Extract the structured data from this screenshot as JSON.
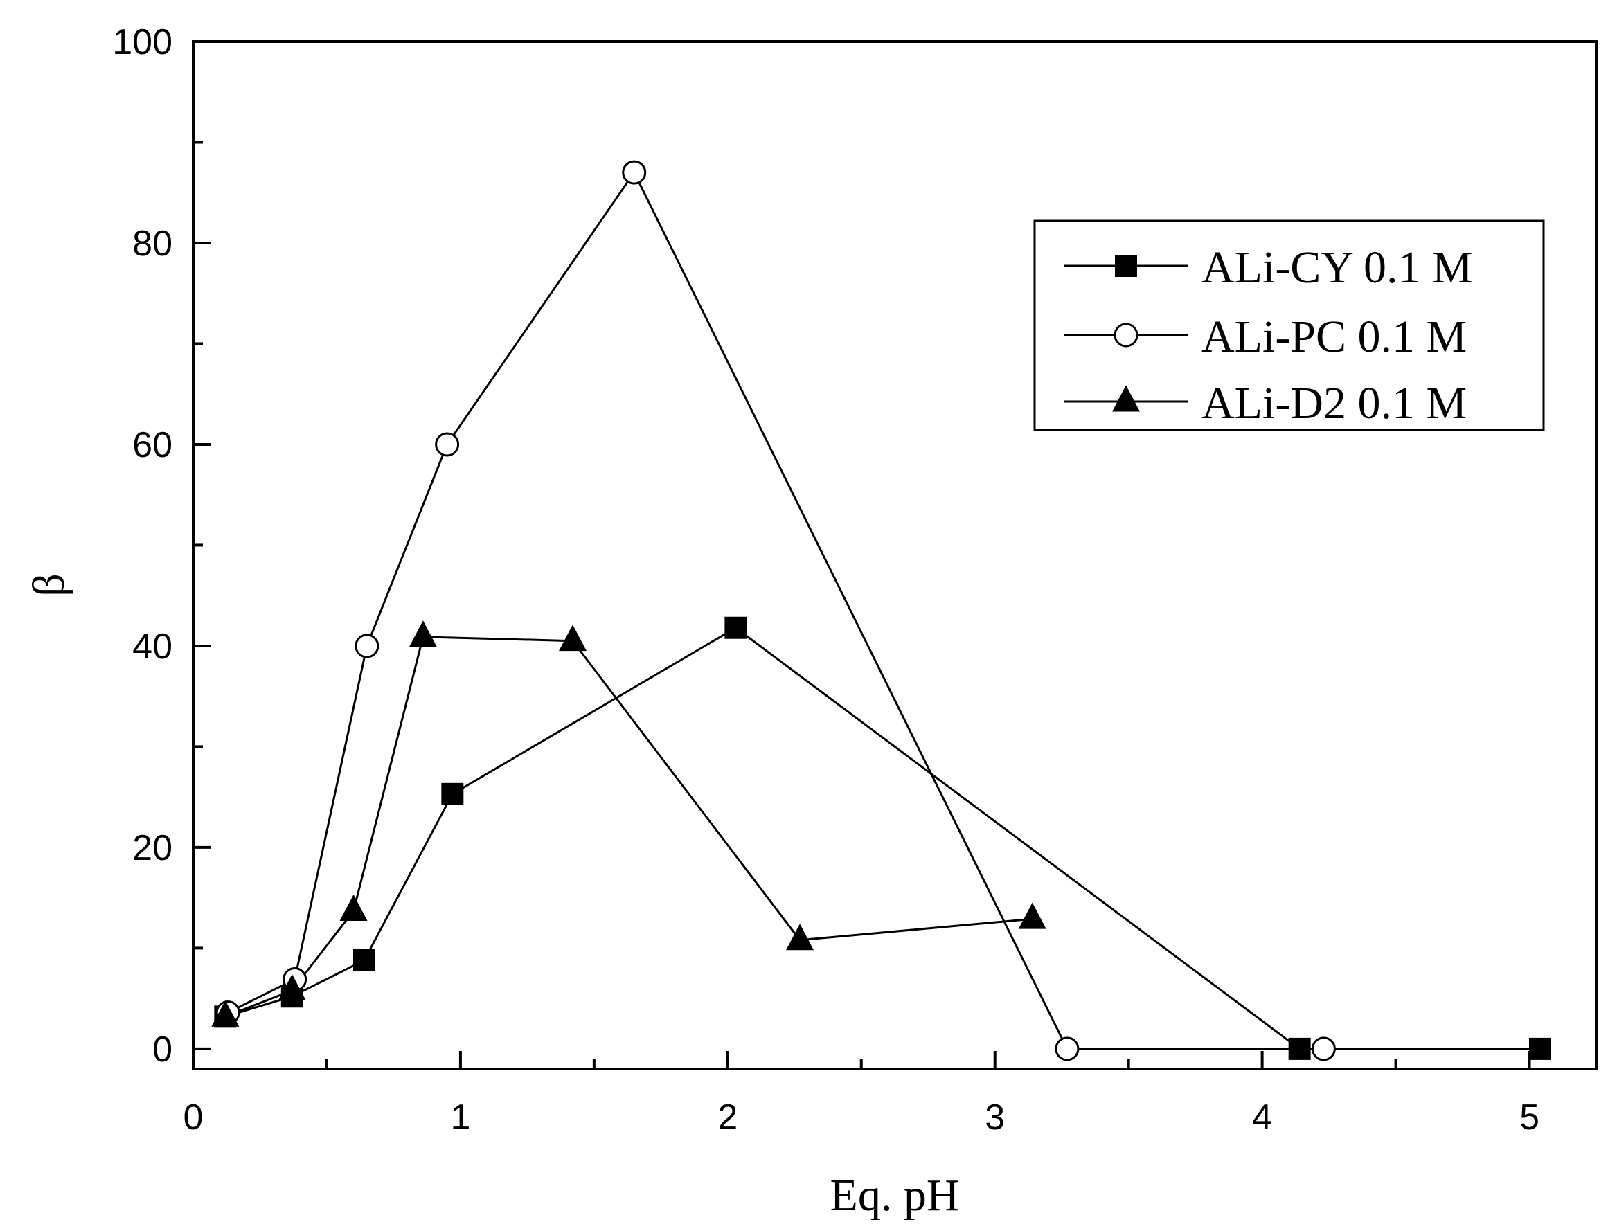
{
  "chart_data": {
    "type": "line",
    "xlabel": "Eq. pH",
    "ylabel": "β",
    "xlim": [
      0,
      5.25
    ],
    "ylim": [
      -2,
      100
    ],
    "xticks": [
      0,
      1,
      2,
      3,
      4,
      5
    ],
    "yticks": [
      0,
      20,
      40,
      60,
      80,
      100
    ],
    "x_minor_step": 0.5,
    "y_minor_step": 10,
    "grid": false,
    "legend_position": "top-right",
    "series": [
      {
        "name": "ALi-CY 0.1 M",
        "marker": "filled-square",
        "color": "#000000",
        "points": [
          {
            "x": 0.12,
            "y": 3.2
          },
          {
            "x": 0.37,
            "y": 5.2
          },
          {
            "x": 0.64,
            "y": 8.8
          },
          {
            "x": 0.97,
            "y": 25.3
          },
          {
            "x": 2.03,
            "y": 41.8
          },
          {
            "x": 4.14,
            "y": 0
          },
          {
            "x": 5.04,
            "y": 0
          }
        ]
      },
      {
        "name": "ALi-PC 0.1 M",
        "marker": "open-circle",
        "color": "#000000",
        "points": [
          {
            "x": 0.13,
            "y": 3.6
          },
          {
            "x": 0.38,
            "y": 6.9
          },
          {
            "x": 0.65,
            "y": 40
          },
          {
            "x": 0.95,
            "y": 60
          },
          {
            "x": 1.65,
            "y": 87
          },
          {
            "x": 3.27,
            "y": 0
          },
          {
            "x": 4.23,
            "y": 0
          }
        ]
      },
      {
        "name": "ALi-D2 0.1 M",
        "marker": "filled-triangle",
        "color": "#000000",
        "points": [
          {
            "x": 0.12,
            "y": 3.2
          },
          {
            "x": 0.37,
            "y": 5.8
          },
          {
            "x": 0.6,
            "y": 13.7
          },
          {
            "x": 0.86,
            "y": 40.9
          },
          {
            "x": 1.42,
            "y": 40.5
          },
          {
            "x": 2.27,
            "y": 10.8
          },
          {
            "x": 3.14,
            "y": 12.9
          }
        ]
      }
    ]
  }
}
